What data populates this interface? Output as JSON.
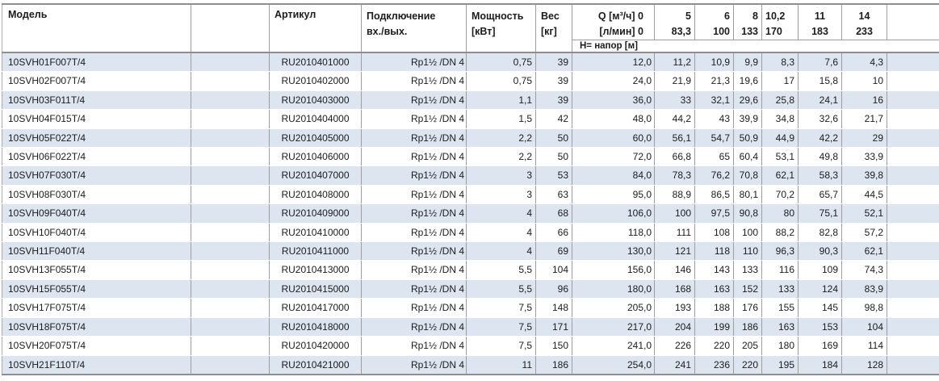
{
  "table": {
    "headers": {
      "model": "Модель",
      "article": "Артикул",
      "connection_line1": "Подключение",
      "connection_line2": "вх./вых.",
      "power_line1": "Мощность",
      "power_line2": "[кВт]",
      "weight_line1": "Вес",
      "weight_line2": "[кг]",
      "q_m3h": "Q [м³/ч] 0",
      "q_lmin": "[л/мин] 0",
      "head_label": "Н= напор [м]"
    },
    "flow_columns": [
      {
        "m3h": "5",
        "lmin": "83,3",
        "align": "right"
      },
      {
        "m3h": "6",
        "lmin": "100",
        "align": "right"
      },
      {
        "m3h": "8",
        "lmin": "133",
        "align": "right"
      },
      {
        "m3h": "10,2",
        "lmin": "170",
        "align": "left"
      },
      {
        "m3h": "11",
        "lmin": "183",
        "align": "center"
      },
      {
        "m3h": "14",
        "lmin": "233",
        "align": "center"
      }
    ],
    "rows": [
      {
        "model": "10SVH01F007T/4",
        "article": "RU2010401000",
        "connection": "Rp1½ /DN 4",
        "power": "0,75",
        "weight": "39",
        "heads": [
          "12,0",
          "11,2",
          "10,9",
          "9,9",
          "8,3",
          "7,6",
          "4,3"
        ]
      },
      {
        "model": "10SVH02F007T/4",
        "article": "RU2010402000",
        "connection": "Rp1½ /DN 4",
        "power": "0,75",
        "weight": "39",
        "heads": [
          "24,0",
          "21,9",
          "21,3",
          "19,6",
          "17",
          "15,8",
          "10"
        ]
      },
      {
        "model": "10SVH03F011T/4",
        "article": "RU2010403000",
        "connection": "Rp1½ /DN 4",
        "power": "1,1",
        "weight": "39",
        "heads": [
          "36,0",
          "33",
          "32,1",
          "29,6",
          "25,8",
          "24,1",
          "16"
        ]
      },
      {
        "model": "10SVH04F015T/4",
        "article": "RU2010404000",
        "connection": "Rp1½ /DN 4",
        "power": "1,5",
        "weight": "42",
        "heads": [
          "48,0",
          "44,2",
          "43",
          "39,9",
          "34,8",
          "32,6",
          "21,7"
        ]
      },
      {
        "model": "10SVH05F022T/4",
        "article": "RU2010405000",
        "connection": "Rp1½ /DN 4",
        "power": "2,2",
        "weight": "50",
        "heads": [
          "60,0",
          "56,1",
          "54,7",
          "50,9",
          "44,9",
          "42,2",
          "29"
        ]
      },
      {
        "model": "10SVH06F022T/4",
        "article": "RU2010406000",
        "connection": "Rp1½ /DN 4",
        "power": "2,2",
        "weight": "50",
        "heads": [
          "72,0",
          "66,8",
          "65",
          "60,4",
          "53,1",
          "49,8",
          "33,9"
        ]
      },
      {
        "model": "10SVH07F030T/4",
        "article": "RU2010407000",
        "connection": "Rp1½ /DN 4",
        "power": "3",
        "weight": "53",
        "heads": [
          "84,0",
          "78,3",
          "76,2",
          "70,8",
          "62,1",
          "58,3",
          "39,8"
        ]
      },
      {
        "model": "10SVH08F030T/4",
        "article": "RU2010408000",
        "connection": "Rp1½ /DN 4",
        "power": "3",
        "weight": "63",
        "heads": [
          "95,0",
          "88,9",
          "86,5",
          "80,1",
          "70,2",
          "65,7",
          "44,5"
        ]
      },
      {
        "model": "10SVH09F040T/4",
        "article": "RU2010409000",
        "connection": "Rp1½ /DN 4",
        "power": "4",
        "weight": "68",
        "heads": [
          "106,0",
          "100",
          "97,5",
          "90,8",
          "80",
          "75,1",
          "52,1"
        ]
      },
      {
        "model": "10SVH10F040T/4",
        "article": "RU2010410000",
        "connection": "Rp1½ /DN 4",
        "power": "4",
        "weight": "66",
        "heads": [
          "118,0",
          "111",
          "108",
          "100",
          "88,2",
          "82,8",
          "57,2"
        ]
      },
      {
        "model": "10SVH11F040T/4",
        "article": "RU2010411000",
        "connection": "Rp1½ /DN 4",
        "power": "4",
        "weight": "69",
        "heads": [
          "130,0",
          "121",
          "118",
          "110",
          "96,3",
          "90,3",
          "62,1"
        ]
      },
      {
        "model": "10SVH13F055T/4",
        "article": "RU2010413000",
        "connection": "Rp1½ /DN 4",
        "power": "5,5",
        "weight": "104",
        "heads": [
          "156,0",
          "146",
          "143",
          "133",
          "116",
          "109",
          "74,3"
        ]
      },
      {
        "model": "10SVH15F055T/4",
        "article": "RU2010415000",
        "connection": "Rp1½ /DN 4",
        "power": "5,5",
        "weight": "96",
        "heads": [
          "180,0",
          "168",
          "163",
          "152",
          "133",
          "124",
          "83,9"
        ]
      },
      {
        "model": "10SVH17F075T/4",
        "article": "RU2010417000",
        "connection": "Rp1½ /DN 4",
        "power": "7,5",
        "weight": "148",
        "heads": [
          "205,0",
          "193",
          "188",
          "176",
          "155",
          "145",
          "98,8"
        ]
      },
      {
        "model": "10SVH18F075T/4",
        "article": "RU2010418000",
        "connection": "Rp1½ /DN 4",
        "power": "7,5",
        "weight": "171",
        "heads": [
          "217,0",
          "204",
          "199",
          "186",
          "163",
          "153",
          "104"
        ]
      },
      {
        "model": "10SVH20F075T/4",
        "article": "RU2010420000",
        "connection": "Rp1½ /DN 4",
        "power": "7,5",
        "weight": "150",
        "heads": [
          "241,0",
          "226",
          "220",
          "205",
          "180",
          "169",
          "114"
        ]
      },
      {
        "model": "10SVH21F110T/4",
        "article": "RU2010421000",
        "connection": "Rp1½ /DN 4",
        "power": "11",
        "weight": "186",
        "heads": [
          "254,0",
          "241",
          "236",
          "220",
          "195",
          "184",
          "128"
        ]
      }
    ]
  },
  "colors": {
    "stripe": "#dce5f0",
    "grid_line": "#9e9e9e",
    "strong_line": "#8e8e8e",
    "text": "#1c1c1c",
    "background": "#ffffff"
  }
}
